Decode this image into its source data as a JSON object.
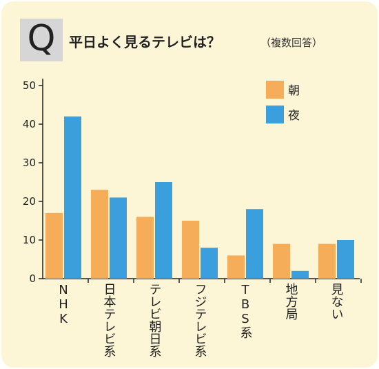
{
  "header": {
    "q_mark": "Q",
    "title": "平日よく見るテレビは？",
    "subtitle": "（複数回答）"
  },
  "colors": {
    "background": "#fdf6d6",
    "morning": "#f6ad5a",
    "night": "#3a9fdc",
    "axis": "#222222"
  },
  "chart_data": {
    "type": "bar",
    "title": "平日よく見るテレビは？",
    "subtitle": "（複数回答）",
    "categories": [
      "NHK",
      "日本テレビ系",
      "テレビ朝日系",
      "フジテレビ系",
      "TBS系",
      "地方局",
      "見ない"
    ],
    "series": [
      {
        "name": "朝",
        "values": [
          17,
          23,
          16,
          15,
          6,
          9,
          9
        ]
      },
      {
        "name": "夜",
        "values": [
          42,
          21,
          25,
          8,
          18,
          2,
          10
        ]
      }
    ],
    "ylim": [
      0,
      50
    ],
    "yticks": [
      0,
      10,
      20,
      30,
      40,
      50
    ],
    "xlabel": "",
    "ylabel": "",
    "grid": false,
    "legend_position": "top-right"
  }
}
